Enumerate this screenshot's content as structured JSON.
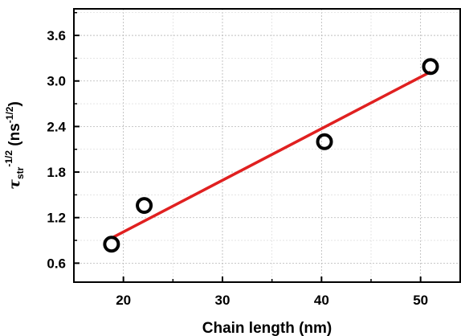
{
  "chart_data": {
    "type": "scatter",
    "xlabel": "Chain length (nm)",
    "ylabel": {
      "symbol": "τ",
      "subscript": "str",
      "superscript": "-1/2",
      "units_open": " (ns",
      "units_sup": "-1/2",
      "units_close": ")"
    },
    "xlim": [
      15,
      54
    ],
    "ylim": [
      0.35,
      3.95
    ],
    "xticks": [
      20,
      30,
      40,
      50
    ],
    "yticks": [
      0.6,
      1.2,
      1.8,
      2.4,
      3.0,
      3.6
    ],
    "xtick_labels": [
      "20",
      "30",
      "40",
      "50"
    ],
    "ytick_labels": [
      "0.6",
      "1.2",
      "1.8",
      "2.4",
      "3.0",
      "3.6"
    ],
    "grid": true,
    "series": [
      {
        "marker": "open-circle",
        "color": "#000000",
        "x": [
          18.8,
          22.1,
          40.3,
          51.0
        ],
        "y": [
          0.85,
          1.36,
          2.2,
          3.19
        ]
      }
    ],
    "fit_line": {
      "color": "#e02020",
      "x": [
        18.8,
        51.0
      ],
      "y": [
        0.93,
        3.12
      ]
    }
  }
}
